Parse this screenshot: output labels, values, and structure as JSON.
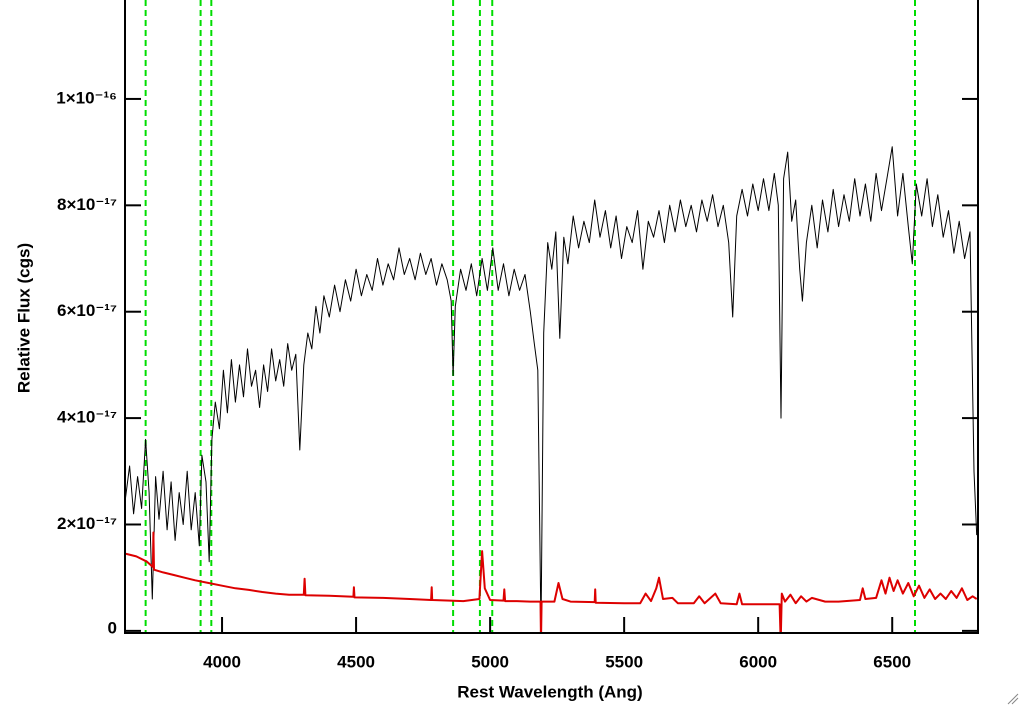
{
  "chart_data": {
    "type": "line",
    "xlabel": "Rest Wavelength (Ang)",
    "ylabel": "Relative Flux (cgs)",
    "xlim": [
      3638,
      6820
    ],
    "ylim": [
      -4e-19,
      1.186e-16
    ],
    "xticks": [
      4000,
      4500,
      5000,
      5500,
      6000,
      6500
    ],
    "yticks": [
      0,
      {
        "value": 2e-17,
        "label": "2×10⁻¹⁷"
      },
      {
        "value": 4e-17,
        "label": "4×10⁻¹⁷"
      },
      {
        "value": 6e-17,
        "label": "6×10⁻¹⁷"
      },
      {
        "value": 8e-17,
        "label": "8×10⁻¹⁷"
      },
      {
        "value": 1e-16,
        "label": "1×10⁻¹⁶"
      }
    ],
    "vlines": {
      "color": "#00dd00",
      "x": [
        3715,
        3920,
        3960,
        4862,
        4962,
        5008,
        6585
      ]
    },
    "series": [
      {
        "color": "#000000",
        "x": [
          3640,
          3655,
          3670,
          3685,
          3700,
          3715,
          3728,
          3740,
          3752,
          3765,
          3780,
          3795,
          3810,
          3825,
          3840,
          3855,
          3870,
          3885,
          3900,
          3915,
          3925,
          3940,
          3952,
          3962,
          3975,
          3990,
          4005,
          4020,
          4035,
          4050,
          4065,
          4080,
          4095,
          4110,
          4125,
          4140,
          4155,
          4170,
          4185,
          4200,
          4215,
          4230,
          4245,
          4260,
          4275,
          4290,
          4305,
          4320,
          4335,
          4350,
          4365,
          4380,
          4400,
          4420,
          4440,
          4460,
          4480,
          4500,
          4520,
          4540,
          4560,
          4580,
          4600,
          4620,
          4640,
          4660,
          4680,
          4700,
          4720,
          4740,
          4760,
          4780,
          4800,
          4820,
          4840,
          4855,
          4862,
          4870,
          4890,
          4910,
          4930,
          4950,
          4970,
          4990,
          5010,
          5030,
          5050,
          5070,
          5090,
          5110,
          5130,
          5150,
          5165,
          5178,
          5190,
          5200,
          5215,
          5230,
          5245,
          5260,
          5275,
          5290,
          5310,
          5330,
          5350,
          5370,
          5390,
          5410,
          5430,
          5450,
          5470,
          5490,
          5510,
          5530,
          5550,
          5570,
          5590,
          5610,
          5630,
          5650,
          5670,
          5690,
          5710,
          5730,
          5750,
          5770,
          5790,
          5810,
          5830,
          5850,
          5870,
          5890,
          5905,
          5920,
          5940,
          5960,
          5980,
          6000,
          6020,
          6040,
          6060,
          6075,
          6085,
          6095,
          6110,
          6125,
          6140,
          6155,
          6165,
          6180,
          6200,
          6220,
          6240,
          6260,
          6280,
          6300,
          6320,
          6340,
          6360,
          6380,
          6400,
          6420,
          6440,
          6460,
          6480,
          6500,
          6520,
          6540,
          6560,
          6575,
          6590,
          6610,
          6630,
          6650,
          6670,
          6690,
          6710,
          6730,
          6750,
          6770,
          6790,
          6805,
          6815
        ],
        "values": [
          2.5e-17,
          3.1e-17,
          2.2e-17,
          2.9e-17,
          2.3e-17,
          3.6e-17,
          2.6e-17,
          6e-18,
          2.9e-17,
          2.1e-17,
          3e-17,
          1.9e-17,
          2.8e-17,
          1.7e-17,
          2.6e-17,
          2e-17,
          3e-17,
          1.9e-17,
          2.6e-17,
          1.6e-17,
          3.3e-17,
          2.8e-17,
          1.3e-17,
          3.6e-17,
          4.3e-17,
          3.8e-17,
          4.9e-17,
          4.1e-17,
          5.1e-17,
          4.3e-17,
          5e-17,
          4.4e-17,
          5.3e-17,
          4.6e-17,
          4.9e-17,
          4.2e-17,
          5e-17,
          4.5e-17,
          5.3e-17,
          4.7e-17,
          5.1e-17,
          4.6e-17,
          5.4e-17,
          4.9e-17,
          5.2e-17,
          3.4e-17,
          5e-17,
          5.6e-17,
          5.3e-17,
          6.1e-17,
          5.6e-17,
          6.3e-17,
          5.9e-17,
          6.5e-17,
          6e-17,
          6.6e-17,
          6.2e-17,
          6.8e-17,
          6.3e-17,
          6.7e-17,
          6.4e-17,
          7e-17,
          6.5e-17,
          6.9e-17,
          6.6e-17,
          7.2e-17,
          6.7e-17,
          7e-17,
          6.6e-17,
          7.1e-17,
          6.7e-17,
          7e-17,
          6.5e-17,
          6.9e-17,
          6.6e-17,
          6.2e-17,
          4.8e-17,
          6.1e-17,
          6.8e-17,
          6.4e-17,
          6.9e-17,
          6.3e-17,
          7e-17,
          6.4e-17,
          7.2e-17,
          6.4e-17,
          6.9e-17,
          6.3e-17,
          6.8e-17,
          6.4e-17,
          6.7e-17,
          6e-17,
          5.4e-17,
          4.9e-17,
          0,
          5.6e-17,
          7.3e-17,
          6.8e-17,
          7.5e-17,
          5.5e-17,
          7.4e-17,
          6.9e-17,
          7.8e-17,
          7.2e-17,
          7.7e-17,
          7.3e-17,
          8.1e-17,
          7.4e-17,
          7.9e-17,
          7.2e-17,
          7.8e-17,
          7e-17,
          7.6e-17,
          7.3e-17,
          7.9e-17,
          6.8e-17,
          7.7e-17,
          7.4e-17,
          7.9e-17,
          7.3e-17,
          8e-17,
          7.5e-17,
          8.1e-17,
          7.6e-17,
          8e-17,
          7.5e-17,
          8.1e-17,
          7.7e-17,
          8.2e-17,
          7.6e-17,
          8e-17,
          7.3e-17,
          5.9e-17,
          7.8e-17,
          8.3e-17,
          7.8e-17,
          8.4e-17,
          7.9e-17,
          8.5e-17,
          7.9e-17,
          8.6e-17,
          8e-17,
          4e-17,
          8.5e-17,
          9e-17,
          7.7e-17,
          8.1e-17,
          6.8e-17,
          6.2e-17,
          7.3e-17,
          8e-17,
          7.2e-17,
          8.1e-17,
          7.5e-17,
          8.3e-17,
          7.6e-17,
          8.2e-17,
          7.7e-17,
          8.5e-17,
          7.8e-17,
          8.4e-17,
          7.7e-17,
          8.6e-17,
          7.9e-17,
          8.5e-17,
          9.1e-17,
          7.8e-17,
          8.6e-17,
          7.6e-17,
          6.9e-17,
          8.4e-17,
          7.8e-17,
          8.5e-17,
          7.6e-17,
          8.2e-17,
          7.4e-17,
          7.9e-17,
          7.1e-17,
          7.7e-17,
          7e-17,
          7.5e-17,
          3e-17,
          1.8e-17
        ]
      },
      {
        "color": "#dd0000",
        "x": [
          3640,
          3680,
          3720,
          3742,
          3744,
          3746,
          3780,
          3820,
          3860,
          3900,
          3950,
          4000,
          4050,
          4100,
          4150,
          4200,
          4250,
          4305,
          4308,
          4311,
          4400,
          4490,
          4492,
          4494,
          4600,
          4700,
          4780,
          4782,
          4784,
          4850,
          4900,
          4960,
          4970,
          4980,
          5000,
          5050,
          5053,
          5056,
          5100,
          5150,
          5188,
          5190,
          5192,
          5240,
          5255,
          5270,
          5300,
          5390,
          5392,
          5394,
          5500,
          5560,
          5580,
          5600,
          5620,
          5630,
          5645,
          5680,
          5700,
          5760,
          5780,
          5800,
          5840,
          5860,
          5920,
          5930,
          5940,
          6000,
          6080,
          6084,
          6088,
          6100,
          6120,
          6140,
          6160,
          6180,
          6200,
          6250,
          6300,
          6380,
          6390,
          6400,
          6440,
          6460,
          6475,
          6490,
          6505,
          6520,
          6540,
          6560,
          6580,
          6600,
          6620,
          6640,
          6660,
          6680,
          6700,
          6720,
          6740,
          6760,
          6780,
          6800,
          6815
        ],
        "values": [
          1.45e-17,
          1.4e-17,
          1.3e-17,
          1.2e-17,
          1.85e-17,
          1.15e-17,
          1.1e-17,
          1.05e-17,
          1e-17,
          9.5e-18,
          9e-18,
          8.5e-18,
          8e-18,
          7.7e-18,
          7.3e-18,
          7e-18,
          6.8e-18,
          6.8e-18,
          9.8e-18,
          6.7e-18,
          6.6e-18,
          6.4e-18,
          8.2e-18,
          6.3e-18,
          6.2e-18,
          6e-18,
          5.8e-18,
          8.2e-18,
          5.8e-18,
          5.7e-18,
          5.6e-18,
          6e-18,
          1.5e-17,
          8e-18,
          5.8e-18,
          5.7e-18,
          7.8e-18,
          5.6e-18,
          5.6e-18,
          5.5e-18,
          5.5e-18,
          -2e-18,
          5.5e-18,
          5.5e-18,
          9e-18,
          6e-18,
          5.5e-18,
          5.4e-18,
          7.8e-18,
          5.3e-18,
          5.2e-18,
          5.2e-18,
          7e-18,
          5.6e-18,
          8e-18,
          1e-17,
          6e-18,
          6.2e-18,
          5.2e-18,
          5.2e-18,
          6.5e-18,
          5.2e-18,
          7e-18,
          5.2e-18,
          5e-18,
          7e-18,
          5e-18,
          5e-18,
          5e-18,
          -2e-18,
          7e-18,
          5.5e-18,
          6.8e-18,
          5.2e-18,
          6.5e-18,
          5.5e-18,
          6.2e-18,
          5.5e-18,
          5.5e-18,
          5.8e-18,
          8e-18,
          6e-18,
          6.2e-18,
          9.5e-18,
          7e-18,
          1e-17,
          7.5e-18,
          9.5e-18,
          7e-18,
          9e-18,
          6.5e-18,
          8.5e-18,
          6.2e-18,
          7.8e-18,
          6e-18,
          7e-18,
          6e-18,
          7.5e-18,
          6.2e-18,
          8e-18,
          5.8e-18,
          6.5e-18,
          6e-18
        ]
      }
    ]
  }
}
